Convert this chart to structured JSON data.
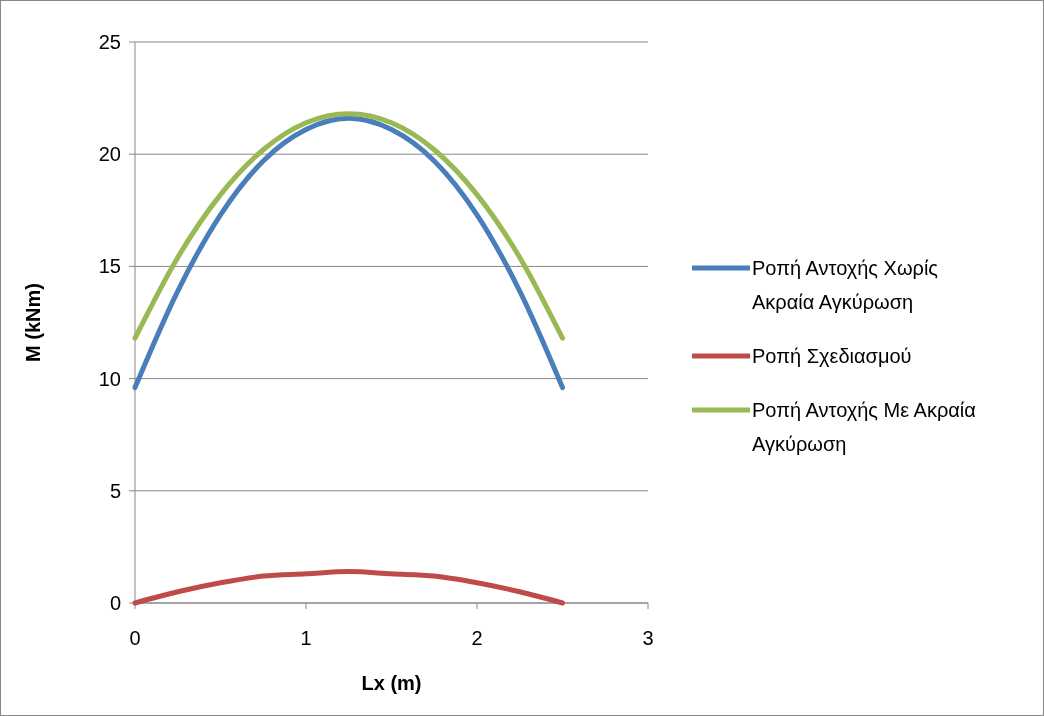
{
  "chart_data": {
    "type": "line",
    "xlabel": "Lx (m)",
    "ylabel": "M (kNm)",
    "xlim": [
      0,
      3
    ],
    "xticks": [
      0,
      1,
      2,
      3
    ],
    "ylim": [
      0,
      25
    ],
    "yticks": [
      0,
      5,
      10,
      15,
      20,
      25
    ],
    "grid": "y",
    "legend": "right",
    "marker": "none",
    "line_style": "solid",
    "series": [
      {
        "name": "Ροπή Αντοχής Χωρίς Ακραία Αγκύρωση",
        "color": "#4a7ebb",
        "x": [
          0,
          0.25,
          0.5,
          0.75,
          1,
          1.25,
          1.5,
          1.75,
          2,
          2.25,
          2.5
        ],
        "values": [
          9.6,
          13.9,
          17.3,
          19.7,
          21.1,
          21.6,
          21.1,
          19.7,
          17.3,
          13.9,
          9.6
        ]
      },
      {
        "name": "Ροπή Σχεδιασμού",
        "color": "#be4b48",
        "x": [
          0,
          0.25,
          0.5,
          0.75,
          1,
          1.25,
          1.5,
          1.75,
          2,
          2.25,
          2.5
        ],
        "values": [
          0,
          0.5,
          0.9,
          1.2,
          1.3,
          1.4,
          1.3,
          1.2,
          0.9,
          0.5,
          0
        ]
      },
      {
        "name": "Ροπή Αντοχής Με Ακραία Αγκύρωση",
        "color": "#98b954",
        "x": [
          0,
          0.25,
          0.5,
          0.75,
          1,
          1.25,
          1.5,
          1.75,
          2,
          2.25,
          2.5
        ],
        "values": [
          11.8,
          15.4,
          18.2,
          20.2,
          21.4,
          21.8,
          21.4,
          20.2,
          18.2,
          15.4,
          11.8
        ]
      }
    ]
  }
}
